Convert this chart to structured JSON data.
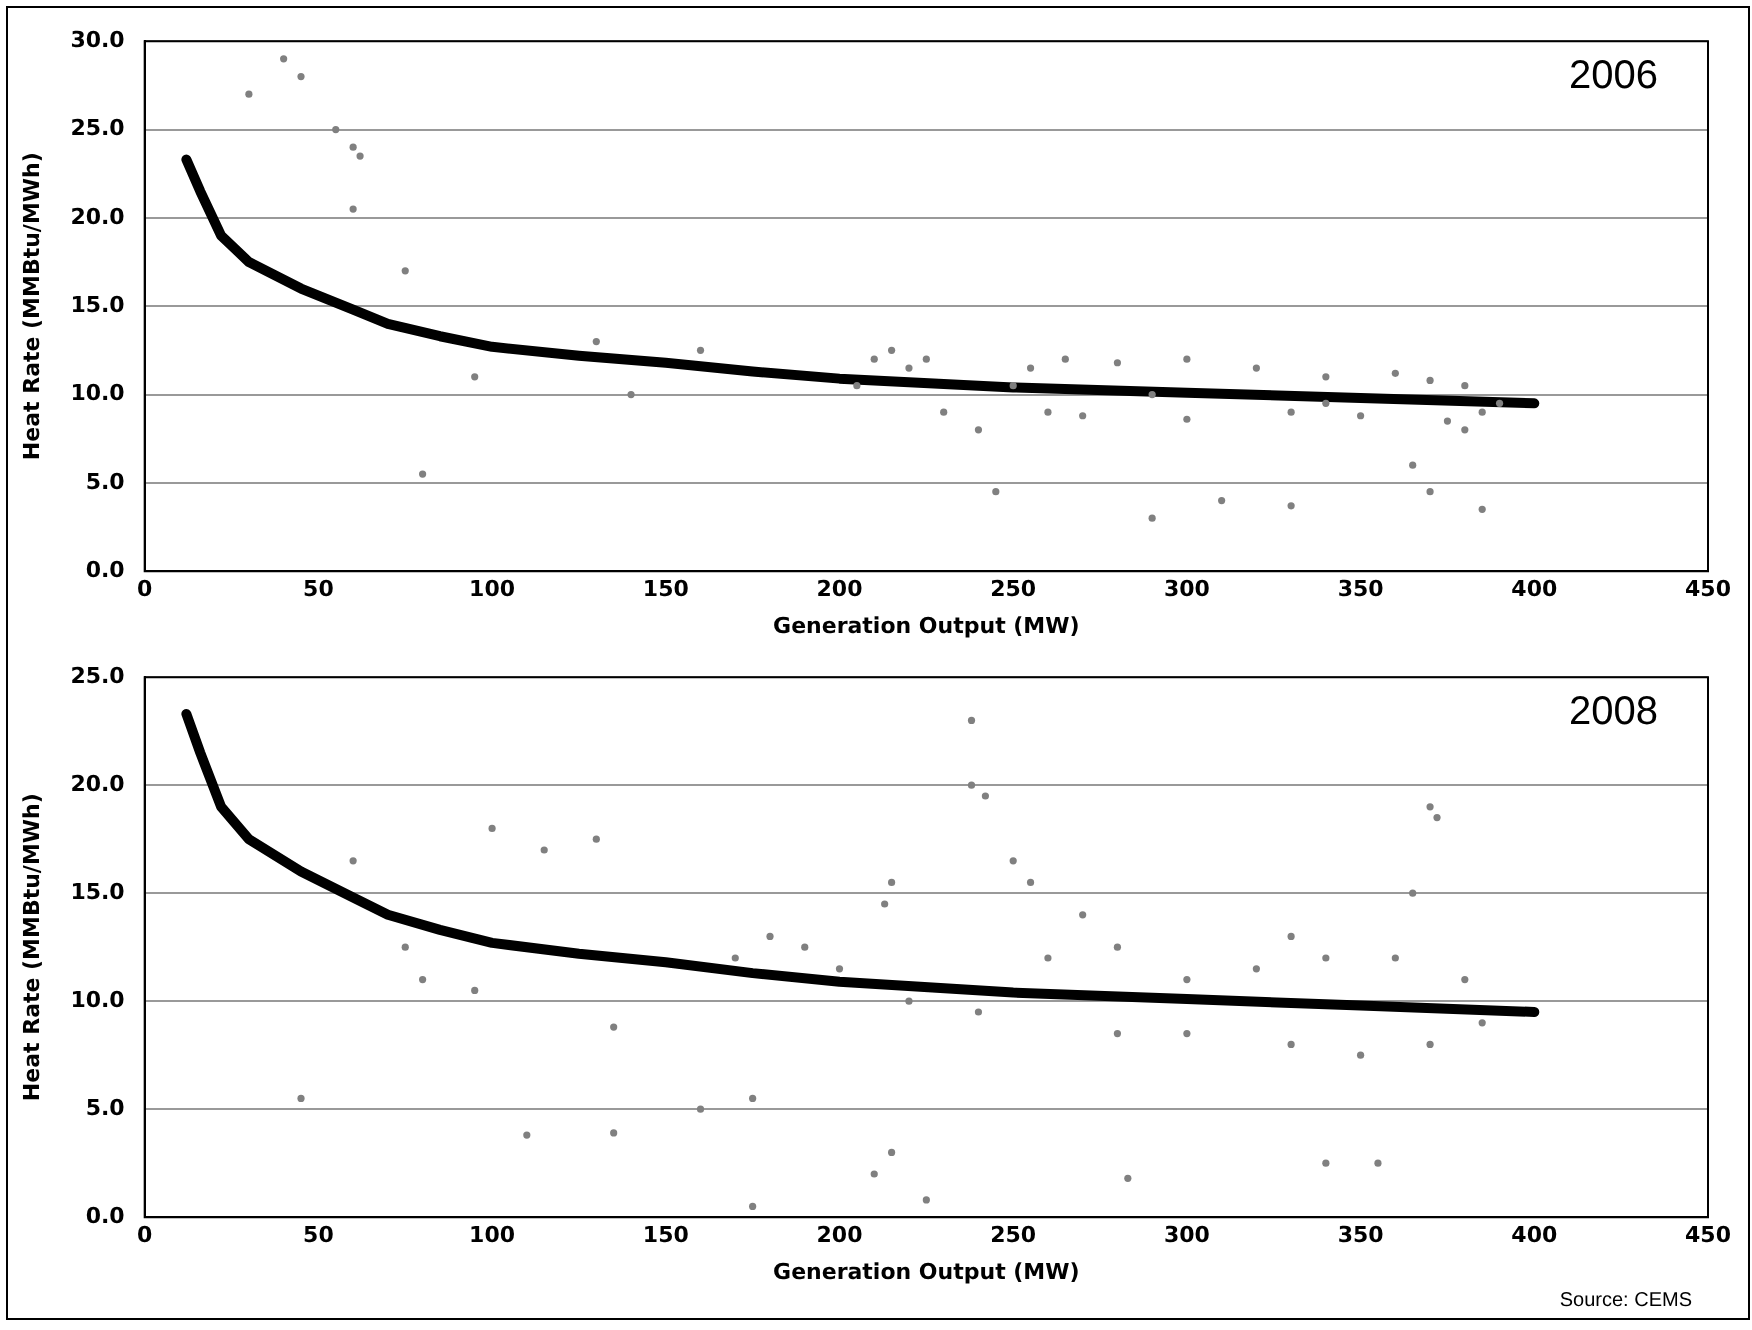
{
  "chart_data": [
    {
      "type": "scatter",
      "xlabel": "Generation Output (MW)",
      "ylabel": "Heat Rate (MMBtu/MWh)",
      "annotations": [
        "2006"
      ],
      "xlim": [
        0,
        450
      ],
      "xticks": [
        0,
        50,
        100,
        150,
        200,
        250,
        300,
        350,
        400,
        450
      ],
      "ylim": [
        0,
        30
      ],
      "yticks": [
        {
          "value": 0,
          "label": "0.0"
        },
        {
          "value": 5,
          "label": "5.0"
        },
        {
          "value": 10,
          "label": "10.0"
        },
        {
          "value": 15,
          "label": "15.0"
        },
        {
          "value": 20,
          "label": "20.0"
        },
        {
          "value": 25,
          "label": "25.0"
        },
        {
          "value": 30,
          "label": "30.0"
        }
      ],
      "grid": "y",
      "legend": false,
      "marker": "circle",
      "series": [
        {
          "color": "#808080",
          "x": [
            30,
            40,
            45,
            55,
            60,
            62,
            60,
            75,
            80,
            95,
            130,
            140,
            160,
            205,
            210,
            215,
            220,
            225,
            230,
            240,
            245,
            255,
            260,
            265,
            270,
            280,
            290,
            300,
            300,
            310,
            320,
            330,
            330,
            340,
            350,
            360,
            365,
            370,
            370,
            375,
            380,
            385,
            385,
            390,
            250,
            290,
            340,
            380
          ],
          "values": [
            27,
            29,
            28,
            25,
            24,
            23.5,
            20.5,
            17,
            5.5,
            11,
            13,
            10,
            12.5,
            10.5,
            12,
            12.5,
            11.5,
            12,
            9,
            8,
            4.5,
            11.5,
            9,
            12,
            8.8,
            11.8,
            3,
            12,
            8.6,
            4,
            11.5,
            9,
            3.7,
            11,
            8.8,
            11.2,
            6,
            10.8,
            4.5,
            8.5,
            8,
            9,
            3.5,
            9.5,
            10.5,
            10,
            9.5,
            10.5
          ]
        },
        {
          "type": "line",
          "color": "#000000",
          "marker": "none",
          "x": [
            12,
            16,
            22,
            30,
            45,
            60,
            70,
            85,
            100,
            125,
            150,
            175,
            200,
            250,
            300,
            350,
            400
          ],
          "values": [
            23.3,
            21.5,
            19,
            17.5,
            16,
            14.8,
            14,
            13.3,
            12.7,
            12.2,
            11.8,
            11.3,
            10.9,
            10.4,
            10.1,
            9.8,
            9.5
          ]
        }
      ]
    },
    {
      "type": "scatter",
      "xlabel": "Generation Output (MW)",
      "ylabel": "Heat Rate (MMBtu/MWh)",
      "annotations": [
        "2008",
        "Source: CEMS"
      ],
      "xlim": [
        0,
        450
      ],
      "xticks": [
        0,
        50,
        100,
        150,
        200,
        250,
        300,
        350,
        400,
        450
      ],
      "ylim": [
        0,
        25
      ],
      "yticks": [
        {
          "value": 0,
          "label": "0.0"
        },
        {
          "value": 5,
          "label": "5.0"
        },
        {
          "value": 10,
          "label": "10.0"
        },
        {
          "value": 15,
          "label": "15.0"
        },
        {
          "value": 20,
          "label": "20.0"
        },
        {
          "value": 25,
          "label": "25.0"
        }
      ],
      "grid": "y",
      "legend": false,
      "marker": "circle",
      "series": [
        {
          "color": "#808080",
          "x": [
            45,
            60,
            75,
            80,
            95,
            100,
            110,
            115,
            130,
            135,
            135,
            160,
            170,
            175,
            175,
            180,
            190,
            200,
            210,
            213,
            215,
            215,
            220,
            225,
            238,
            238,
            240,
            242,
            250,
            255,
            260,
            270,
            280,
            280,
            283,
            300,
            300,
            320,
            330,
            330,
            340,
            340,
            350,
            355,
            360,
            365,
            370,
            370,
            372,
            380,
            385
          ],
          "values": [
            5.5,
            16.5,
            12.5,
            11,
            10.5,
            18,
            3.8,
            17,
            17.5,
            3.9,
            8.8,
            5,
            12,
            5.5,
            0.5,
            13,
            12.5,
            11.5,
            2,
            14.5,
            15.5,
            3,
            10,
            0.8,
            23,
            20,
            9.5,
            19.5,
            16.5,
            15.5,
            12,
            14,
            12.5,
            8.5,
            1.8,
            11,
            8.5,
            11.5,
            13,
            8,
            12,
            2.5,
            7.5,
            2.5,
            12,
            15,
            19,
            8,
            18.5,
            11,
            9
          ]
        },
        {
          "type": "line",
          "color": "#000000",
          "marker": "none",
          "x": [
            12,
            16,
            22,
            30,
            45,
            60,
            70,
            85,
            100,
            125,
            150,
            175,
            200,
            250,
            300,
            350,
            400
          ],
          "values": [
            23.3,
            21.5,
            19,
            17.5,
            16,
            14.8,
            14,
            13.3,
            12.7,
            12.2,
            11.8,
            11.3,
            10.9,
            10.4,
            10.1,
            9.8,
            9.5
          ]
        }
      ]
    }
  ]
}
